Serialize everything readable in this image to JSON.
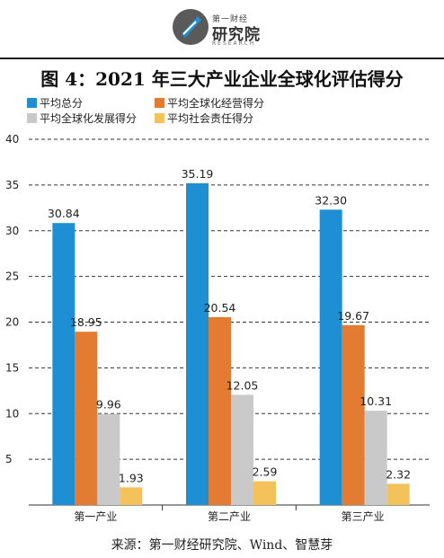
{
  "logo": {
    "small_text": "第一财经",
    "big_text": "研究院",
    "english_text": "RESEARCH"
  },
  "title": "图 4：2021 年三大产业企业全球化评估得分",
  "source": "来源：第一财经研究院、Wind、智慧芽",
  "colors": {
    "blue": "#1f8fd3",
    "orange": "#e37b32",
    "gray": "#c9c9c9",
    "yellow": "#f4c25a"
  },
  "chart_data": {
    "type": "bar",
    "categories": [
      "第一产业",
      "第二产业",
      "第三产业"
    ],
    "series": [
      {
        "name": "平均总分",
        "color": "#1f8fd3",
        "values": [
          30.84,
          35.19,
          32.3
        ],
        "labels": [
          "30.84",
          "35.19",
          "32.30"
        ]
      },
      {
        "name": "平均全球化经营得分",
        "color": "#e37b32",
        "values": [
          18.95,
          20.54,
          19.67
        ],
        "labels": [
          "18.95",
          "20.54",
          "19.67"
        ]
      },
      {
        "name": "平均全球化发展得分",
        "color": "#c9c9c9",
        "values": [
          9.96,
          12.05,
          10.31
        ],
        "labels": [
          "9.96",
          "12.05",
          "10.31"
        ]
      },
      {
        "name": "平均社会责任得分",
        "color": "#f4c25a",
        "values": [
          1.93,
          2.59,
          2.32
        ],
        "labels": [
          "1.93",
          "2.59",
          "2.32"
        ]
      }
    ],
    "yticks": [
      "5",
      "10",
      "15",
      "20",
      "25",
      "30",
      "35",
      "40"
    ],
    "ylim": [
      0,
      40
    ],
    "grid": true,
    "legend_position": "top-left"
  }
}
